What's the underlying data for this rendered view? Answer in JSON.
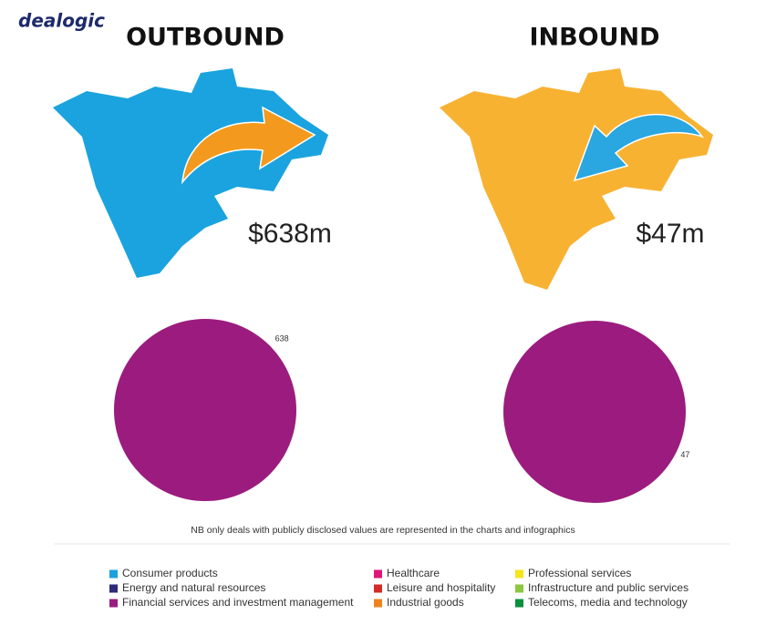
{
  "logo": "dealogic",
  "note": "NB only deals with publicly disclosed values are represented in the charts and infographics",
  "legend": [
    {
      "name": "Consumer products",
      "color": "#1ba1dc"
    },
    {
      "name": "Energy and natural resources",
      "color": "#2e2a7a"
    },
    {
      "name": "Financial services and investment management",
      "color": "#9b1c7e"
    },
    {
      "name": "Healthcare",
      "color": "#e0157a"
    },
    {
      "name": "Leisure and hospitality",
      "color": "#d42a2a"
    },
    {
      "name": "Industrial goods",
      "color": "#f0821e"
    },
    {
      "name": "Professional services",
      "color": "#f5e51a"
    },
    {
      "name": "Infrastructure and public services",
      "color": "#8dc63f"
    },
    {
      "name": "Telecoms, media and technology",
      "color": "#0a8f3c"
    }
  ],
  "chart_data": [
    {
      "type": "pie",
      "title": "OUTBOUND",
      "headline": "$638m",
      "categories": [
        "Financial services and investment management"
      ],
      "values": [
        638
      ],
      "colors": [
        "#9b1c7e"
      ]
    },
    {
      "type": "pie",
      "title": "INBOUND",
      "headline": "$47m",
      "categories": [
        "Financial services and investment management"
      ],
      "values": [
        47
      ],
      "colors": [
        "#9b1c7e"
      ]
    }
  ]
}
